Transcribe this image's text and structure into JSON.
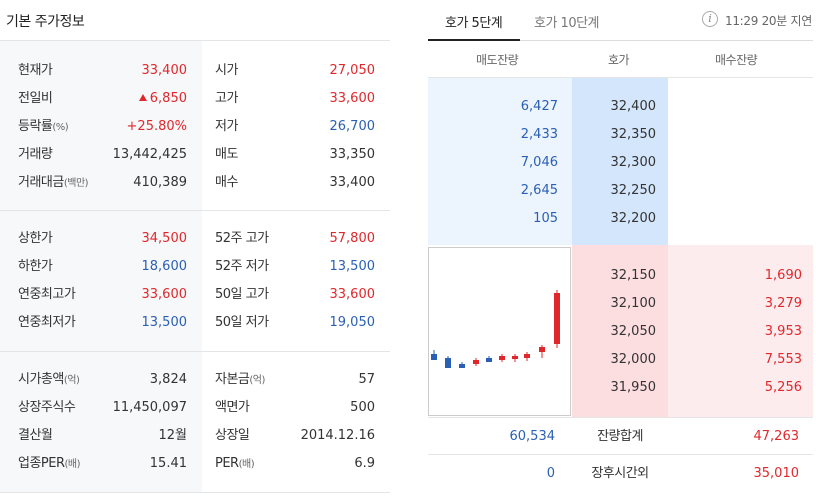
{
  "basic": {
    "title": "기본 주가정보",
    "group1": [
      {
        "k1": "현재가",
        "v1": "33,400",
        "k2": "시가",
        "v2": "27,050"
      },
      {
        "k1": "전일비",
        "v1": "6,850",
        "k2": "고가",
        "v2": "33,600"
      },
      {
        "k1": "등락률",
        "k1_unit": "(%)",
        "v1": "+25.80%",
        "k2": "저가",
        "v2": "26,700"
      },
      {
        "k1": "거래량",
        "v1": "13,442,425",
        "k2": "매도",
        "v2": "33,350"
      },
      {
        "k1": "거래대금",
        "k1_unit": "(백만)",
        "v1": "410,389",
        "k2": "매수",
        "v2": "33,400"
      }
    ],
    "group2": [
      {
        "k1": "상한가",
        "v1": "34,500",
        "k2": "52주 고가",
        "v2": "57,800"
      },
      {
        "k1": "하한가",
        "v1": "18,600",
        "k2": "52주 저가",
        "v2": "13,500"
      },
      {
        "k1": "연중최고가",
        "v1": "33,600",
        "k2": "50일 고가",
        "v2": "33,600"
      },
      {
        "k1": "연중최저가",
        "v1": "13,500",
        "k2": "50일 저가",
        "v2": "19,050"
      }
    ],
    "group3": [
      {
        "k1": "시가총액",
        "k1_unit": "(억)",
        "v1": "3,824",
        "k2": "자본금",
        "k2_unit": "(억)",
        "v2": "57"
      },
      {
        "k1": "상장주식수",
        "v1": "11,450,097",
        "k2": "액면가",
        "v2": "500"
      },
      {
        "k1": "결산월",
        "v1": "12월",
        "k2": "상장일",
        "v2": "2014.12.16"
      },
      {
        "k1": "업종PER",
        "k1_unit": "(배)",
        "v1": "15.41",
        "k2": "PER",
        "k2_unit": "(배)",
        "v2": "6.9"
      }
    ]
  },
  "orderbook": {
    "tabs": [
      {
        "label": "호가 5단계"
      },
      {
        "label": "호가 10단계"
      }
    ],
    "info_icon_glyph": "i",
    "time_text": "11:29 20분 지연",
    "headers": {
      "ask": "매도잔량",
      "price": "호가",
      "bid": "매수잔량"
    },
    "asks": [
      {
        "vol": "6,427",
        "price": "32,400"
      },
      {
        "vol": "2,433",
        "price": "32,350"
      },
      {
        "vol": "7,046",
        "price": "32,300"
      },
      {
        "vol": "2,645",
        "price": "32,250"
      },
      {
        "vol": "105",
        "price": "32,200"
      }
    ],
    "bids": [
      {
        "price": "32,150",
        "vol": "1,690"
      },
      {
        "price": "32,100",
        "vol": "3,279"
      },
      {
        "price": "32,050",
        "vol": "3,953"
      },
      {
        "price": "32,000",
        "vol": "7,553"
      },
      {
        "price": "31,950",
        "vol": "5,256"
      }
    ],
    "total": {
      "ask": "60,534",
      "label": "잔량합계",
      "bid": "47,263"
    },
    "after_hours": {
      "ask": "0",
      "label": "장후시간외",
      "bid": "35,010"
    }
  },
  "colors": {
    "up": "#e0282c",
    "down": "#2b5fb4",
    "ask_bg": "#ecf4fd",
    "bid_bg": "#fdecee"
  },
  "icons": {
    "change_direction": "up-triangle-icon",
    "info": "info-icon"
  },
  "mini_chart": [
    {
      "dir": "down"
    },
    {
      "dir": "down"
    },
    {
      "dir": "down"
    },
    {
      "dir": "up"
    },
    {
      "dir": "down"
    },
    {
      "dir": "up"
    },
    {
      "dir": "up"
    },
    {
      "dir": "up"
    },
    {
      "dir": "up"
    },
    {
      "dir": "up"
    }
  ]
}
